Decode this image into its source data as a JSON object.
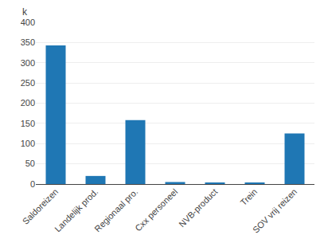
{
  "chart_data": {
    "type": "bar",
    "ylabel": "k",
    "categories": [
      "Saldoreizen",
      "Landelijk prod.",
      "Regionaal pro.",
      "Cxx personeel",
      "NVB-product",
      "Trein",
      "SOV vrij reizen"
    ],
    "values": [
      343,
      20,
      158,
      5,
      2,
      2,
      125
    ],
    "ylim": [
      0,
      400
    ],
    "yticks": [
      0,
      50,
      100,
      150,
      200,
      250,
      300,
      350,
      400
    ],
    "grid": true
  }
}
